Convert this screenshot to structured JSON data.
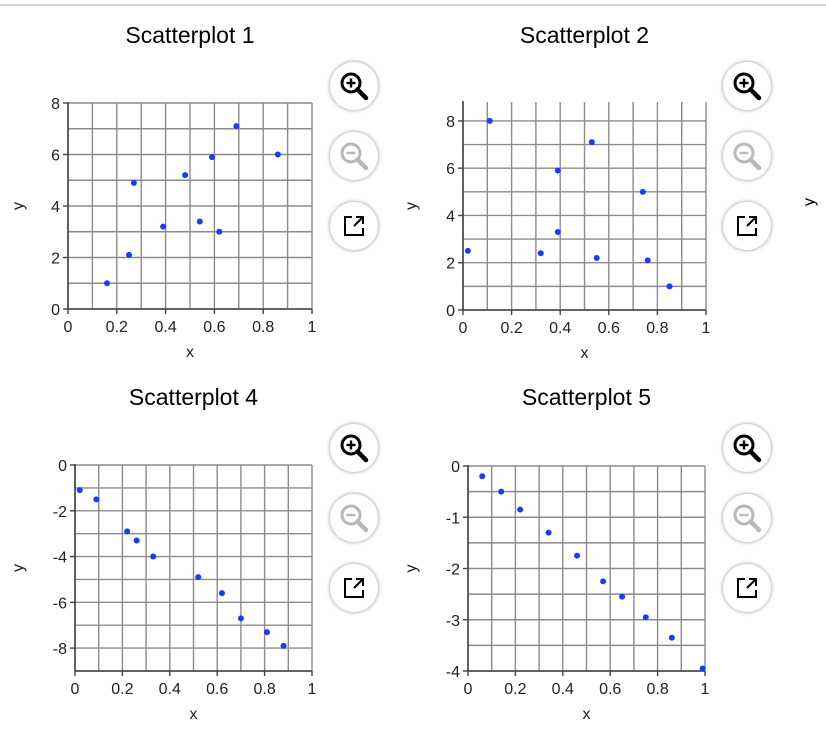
{
  "page": {
    "partial_next_ylabel": "y"
  },
  "toolbar": {
    "zoom_in_icon": "zoom-in-icon",
    "zoom_out_icon": "zoom-out-icon",
    "popout_icon": "popout-icon",
    "zoom_out_enabled": false
  },
  "colors": {
    "points": "#1a3bff",
    "grid": "#8c8c8c",
    "axis": "#444444"
  },
  "chart_data": [
    {
      "type": "scatter",
      "title": "Scatterplot 1",
      "xlabel": "x",
      "ylabel": "y",
      "xlim": [
        0,
        1
      ],
      "ylim": [
        0,
        8
      ],
      "xticks": [
        0,
        0.2,
        0.4,
        0.6,
        0.8,
        1
      ],
      "xtick_labels": [
        "0",
        "0.2",
        "0.4",
        "0.6",
        "0.8",
        "1"
      ],
      "yticks": [
        0,
        2,
        4,
        6,
        8
      ],
      "ytick_labels": [
        "0",
        "2",
        "4",
        "6",
        "8"
      ],
      "grid": true,
      "x": [
        0.16,
        0.25,
        0.27,
        0.39,
        0.48,
        0.54,
        0.59,
        0.62,
        0.69,
        0.86
      ],
      "y": [
        1.0,
        2.1,
        4.9,
        3.2,
        5.2,
        3.4,
        5.9,
        3.0,
        7.1,
        6.0
      ]
    },
    {
      "type": "scatter",
      "title": "Scatterplot 2",
      "xlabel": "x",
      "ylabel": "y",
      "xlim": [
        0,
        1
      ],
      "ylim": [
        0,
        8.8
      ],
      "xticks": [
        0,
        0.2,
        0.4,
        0.6,
        0.8,
        1
      ],
      "xtick_labels": [
        "0",
        "0.2",
        "0.4",
        "0.6",
        "0.8",
        "1"
      ],
      "yticks": [
        0,
        2,
        4,
        6,
        8
      ],
      "ytick_labels": [
        "0",
        "2",
        "4",
        "6",
        "8"
      ],
      "grid": true,
      "x": [
        0.02,
        0.11,
        0.32,
        0.39,
        0.39,
        0.53,
        0.55,
        0.74,
        0.76,
        0.85
      ],
      "y": [
        2.5,
        8.0,
        2.4,
        5.9,
        3.3,
        7.1,
        2.2,
        5.0,
        2.1,
        1.0
      ]
    },
    {
      "type": "scatter",
      "title": "Scatterplot 4",
      "xlabel": "x",
      "ylabel": "y",
      "xlim": [
        0,
        1
      ],
      "ylim": [
        -9,
        0
      ],
      "xticks": [
        0,
        0.2,
        0.4,
        0.6,
        0.8,
        1
      ],
      "xtick_labels": [
        "0",
        "0.2",
        "0.4",
        "0.6",
        "0.8",
        "1"
      ],
      "yticks": [
        0,
        -2,
        -4,
        -6,
        -8
      ],
      "ytick_labels": [
        "0",
        "-2",
        "-4",
        "-6",
        "-8"
      ],
      "grid": true,
      "x": [
        0.02,
        0.09,
        0.22,
        0.26,
        0.33,
        0.52,
        0.62,
        0.7,
        0.81,
        0.88
      ],
      "y": [
        -1.1,
        -1.5,
        -2.9,
        -3.3,
        -4.0,
        -4.9,
        -5.6,
        -6.7,
        -7.3,
        -7.9
      ]
    },
    {
      "type": "scatter",
      "title": "Scatterplot 5",
      "xlabel": "x",
      "ylabel": "y",
      "xlim": [
        0,
        1
      ],
      "ylim": [
        -4,
        0
      ],
      "xticks": [
        0,
        0.2,
        0.4,
        0.6,
        0.8,
        1
      ],
      "xtick_labels": [
        "0",
        "0.2",
        "0.4",
        "0.6",
        "0.8",
        "1"
      ],
      "yticks": [
        0,
        -1,
        -2,
        -3,
        -4
      ],
      "ytick_labels": [
        "0",
        "-1",
        "-2",
        "-3",
        "-4"
      ],
      "grid": true,
      "x": [
        0.06,
        0.14,
        0.22,
        0.34,
        0.46,
        0.57,
        0.65,
        0.75,
        0.86,
        0.99
      ],
      "y": [
        -0.2,
        -0.5,
        -0.85,
        -1.3,
        -1.75,
        -2.25,
        -2.55,
        -2.95,
        -3.35,
        -3.95
      ]
    }
  ]
}
